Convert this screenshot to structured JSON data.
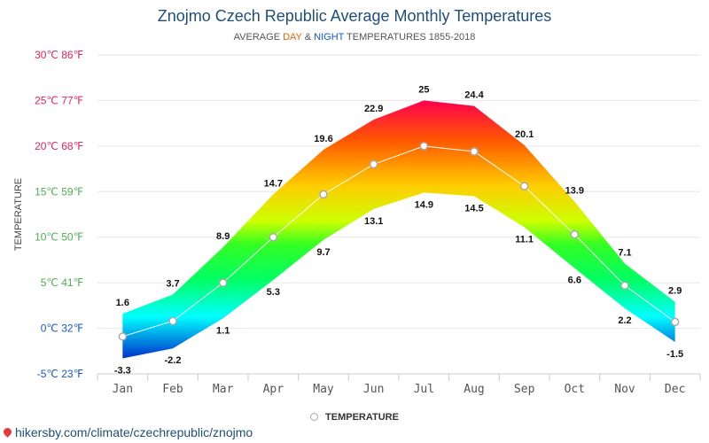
{
  "header": {
    "title": "Znojmo Czech Republic Average Monthly Temperatures",
    "subtitle_prefix": "AVERAGE ",
    "subtitle_day": "DAY",
    "subtitle_amp": " & ",
    "subtitle_night": "NIGHT",
    "subtitle_suffix": " TEMPERATURES 1855-2018"
  },
  "legend": {
    "label": "TEMPERATURE"
  },
  "footer": {
    "url": "hikersby.com/climate/czechrepublic/znojmo"
  },
  "colors": {
    "title": "#1f4e79",
    "day": "#e8630a",
    "night": "#1457c8",
    "line": "#ffffff",
    "marker_border": "#aaaaaa"
  },
  "chart_data": {
    "type": "area",
    "title": "Znojmo Czech Republic Average Monthly Temperatures",
    "ylabel": "TEMPERATURE",
    "ylim": [
      -5,
      30
    ],
    "yticks": [
      {
        "value": 30,
        "label": "30℃ 86℉",
        "color": "#e0245e"
      },
      {
        "value": 25,
        "label": "25℃ 77℉",
        "color": "#e0245e"
      },
      {
        "value": 20,
        "label": "20℃ 68℉",
        "color": "#e0245e"
      },
      {
        "value": 15,
        "label": "15℃ 59℉",
        "color": "#4caf50"
      },
      {
        "value": 10,
        "label": "10℃ 50℉",
        "color": "#4caf50"
      },
      {
        "value": 5,
        "label": "5℃ 41℉",
        "color": "#4caf50"
      },
      {
        "value": 0,
        "label": "0℃ 32℉",
        "color": "#1457c8"
      },
      {
        "value": -5,
        "label": "-5℃ 23℉",
        "color": "#1457c8"
      }
    ],
    "categories": [
      "Jan",
      "Feb",
      "Mar",
      "Apr",
      "May",
      "Jun",
      "Jul",
      "Aug",
      "Sep",
      "Oct",
      "Nov",
      "Dec"
    ],
    "day": [
      1.6,
      3.7,
      8.9,
      14.7,
      19.6,
      22.9,
      25,
      24.4,
      20.1,
      13.9,
      7.1,
      2.9
    ],
    "night": [
      -3.3,
      -2.2,
      1.1,
      5.3,
      9.7,
      13.1,
      14.9,
      14.5,
      11.1,
      6.6,
      2.2,
      -1.5
    ],
    "series": [
      {
        "name": "TEMPERATURE",
        "values": [
          -0.9,
          0.8,
          5.0,
          10.0,
          14.7,
          18.0,
          20.0,
          19.4,
          15.6,
          10.3,
          4.7,
          0.7
        ]
      }
    ],
    "grid": true,
    "legend_position": "bottom-center"
  }
}
